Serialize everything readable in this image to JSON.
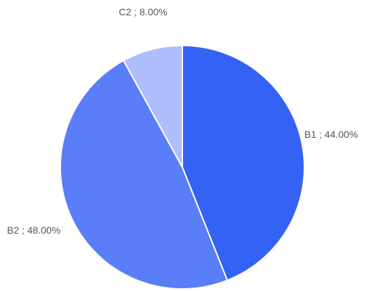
{
  "chart_data": {
    "type": "pie",
    "title": "",
    "start_angle_deg": 0,
    "direction": "clockwise",
    "slices": [
      {
        "label": "B1",
        "value": 44.0,
        "display": "B1 ; 44.00%",
        "color": "#3462f5"
      },
      {
        "label": "B2",
        "value": 48.0,
        "display": "B2 ; 48.00%",
        "color": "#5a7ef7"
      },
      {
        "label": "C2",
        "value": 8.0,
        "display": "C2 ; 8.00%",
        "color": "#aebdfb"
      }
    ],
    "legend": "none",
    "slice_border_color": "#ffffff"
  }
}
